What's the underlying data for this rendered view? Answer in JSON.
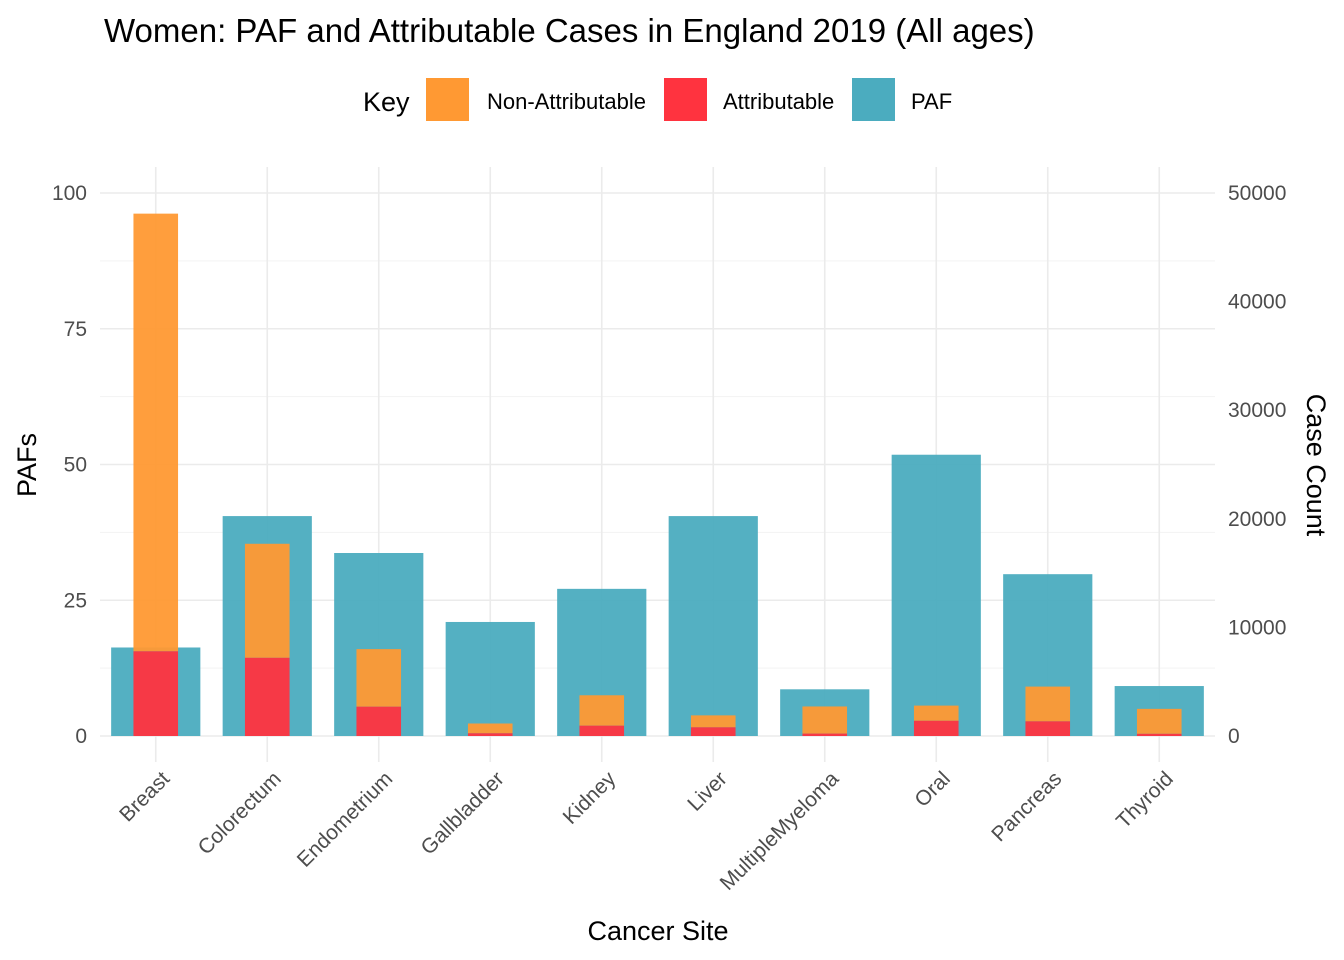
{
  "chart_data": {
    "type": "bar",
    "title": "Women: PAF and Attributable Cases in England 2019 (All ages)",
    "xlabel": "Cancer Site",
    "ylabel": "PAFs",
    "y2label": "Case Count",
    "ylim": [
      0,
      100
    ],
    "y2lim": [
      0,
      50000
    ],
    "yticks": [
      "0",
      "25",
      "50",
      "75",
      "100"
    ],
    "y2ticks": [
      "0",
      "10000",
      "20000",
      "30000",
      "40000",
      "50000"
    ],
    "grid": true,
    "legend": {
      "title": "Key",
      "position": "top",
      "items": [
        {
          "label": "Non-Attributable",
          "color": "#ff9933"
        },
        {
          "label": "Attributable",
          "color": "#ff333f"
        },
        {
          "label": "PAF",
          "color": "#4bacbf"
        }
      ]
    },
    "categories": [
      "Breast",
      "Colorectum",
      "Endometrium",
      "Gallbladder",
      "Kidney",
      "Liver",
      "MultipleMyeloma",
      "Oral",
      "Pancreas",
      "Thyroid"
    ],
    "series": [
      {
        "name": "PAF",
        "axis": "left",
        "color": "#4bacbf",
        "values": [
          16.3,
          40.5,
          33.7,
          21.0,
          27.1,
          40.5,
          8.6,
          51.8,
          29.8,
          9.2
        ]
      },
      {
        "name": "Non-Attributable",
        "axis": "right",
        "color": "#ff9933",
        "values": [
          40300,
          10500,
          5300,
          900,
          2800,
          1100,
          2500,
          1400,
          3200,
          2300
        ]
      },
      {
        "name": "Attributable",
        "axis": "right",
        "color": "#ff333f",
        "values": [
          7800,
          7200,
          2700,
          250,
          950,
          800,
          220,
          1400,
          1350,
          200
        ]
      }
    ]
  }
}
